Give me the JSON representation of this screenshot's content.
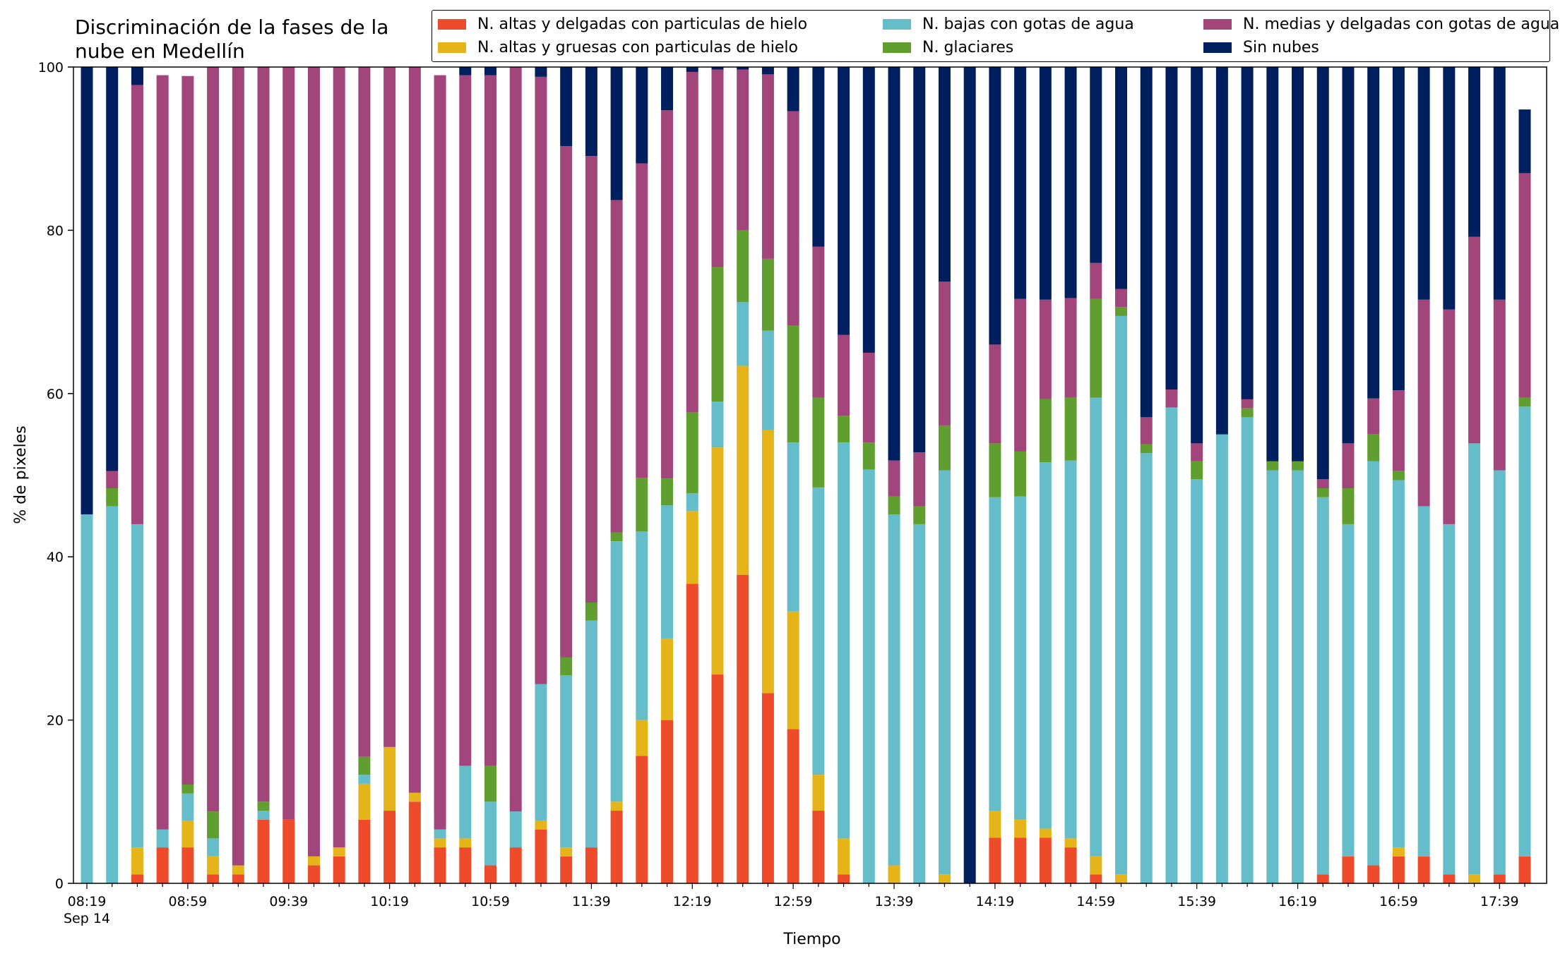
{
  "chart_data": {
    "type": "bar",
    "stacked": true,
    "title": "Discriminación de la fases de la\nnube en Medellín",
    "xlabel": "Tiempo",
    "ylabel": "% de pixeles",
    "ylim": [
      0,
      100
    ],
    "yticks": [
      0,
      20,
      40,
      60,
      80,
      100
    ],
    "xtick_labels": [
      "08:19",
      "08:59",
      "09:39",
      "10:19",
      "10:59",
      "11:39",
      "12:19",
      "12:59",
      "13:39",
      "14:19",
      "14:59",
      "15:39",
      "16:19",
      "16:59",
      "17:39"
    ],
    "xtick_first_sublabel": "Sep 14",
    "xtick_every": 4,
    "legend_position": "top",
    "categories": [
      "08:19",
      "08:29",
      "08:39",
      "08:49",
      "08:59",
      "09:09",
      "09:19",
      "09:29",
      "09:39",
      "09:49",
      "09:59",
      "10:09",
      "10:19",
      "10:29",
      "10:39",
      "10:49",
      "10:59",
      "11:09",
      "11:19",
      "11:29",
      "11:39",
      "11:49",
      "11:59",
      "12:09",
      "12:19",
      "12:29",
      "12:39",
      "12:49",
      "12:59",
      "13:09",
      "13:19",
      "13:29",
      "13:39",
      "13:49",
      "13:59",
      "14:09",
      "14:19",
      "14:29",
      "14:39",
      "14:49",
      "14:59",
      "15:09",
      "15:19",
      "15:29",
      "15:39",
      "15:49",
      "15:59",
      "16:09",
      "16:19",
      "16:29",
      "16:39",
      "16:49",
      "16:59",
      "17:09",
      "17:19",
      "17:29",
      "17:39",
      "17:49"
    ],
    "series": [
      {
        "name": "N. altas y delgadas con particulas de hielo",
        "color": "#EE4B2B",
        "values": [
          0,
          0,
          1.1,
          4.4,
          4.4,
          1.1,
          1.1,
          7.8,
          7.8,
          2.2,
          3.3,
          7.8,
          8.9,
          10,
          4.4,
          4.4,
          2.2,
          4.4,
          6.6,
          3.3,
          4.4,
          8.9,
          15.6,
          20,
          36.7,
          25.6,
          37.8,
          23.3,
          18.9,
          8.9,
          1.1,
          0,
          0,
          0,
          0,
          0,
          5.6,
          5.6,
          5.6,
          4.4,
          1.1,
          0,
          0,
          0,
          0,
          0,
          0,
          0,
          0,
          1.1,
          3.3,
          2.2,
          3.3,
          3.3,
          1.1,
          0,
          1.1,
          3.3
        ]
      },
      {
        "name": "N. altas y gruesas con particulas de hielo",
        "color": "#E5B418",
        "values": [
          0,
          0,
          3.3,
          0,
          3.3,
          2.2,
          1.1,
          0,
          0,
          1.1,
          1.1,
          4.4,
          7.8,
          1.1,
          1.1,
          1.1,
          0,
          0,
          1.1,
          1.1,
          0,
          1.1,
          4.4,
          10,
          8.9,
          27.8,
          25.6,
          32.2,
          14.4,
          4.4,
          4.4,
          0,
          2.2,
          0,
          1.1,
          0,
          3.3,
          2.2,
          1.1,
          1.1,
          2.2,
          1.1,
          0,
          0,
          0,
          0,
          0,
          0,
          0,
          0,
          0,
          0,
          1.1,
          0,
          0,
          1.1,
          0,
          0
        ]
      },
      {
        "name": "N. bajas con gotas de agua",
        "color": "#64BDC9",
        "values": [
          45.2,
          46.2,
          39.6,
          2.2,
          3.3,
          2.2,
          0,
          1.1,
          0,
          0,
          0,
          1.1,
          0,
          0,
          1.1,
          8.9,
          7.8,
          4.4,
          16.7,
          21.1,
          27.8,
          31.9,
          23.1,
          16.3,
          2.2,
          5.6,
          7.8,
          12.2,
          20.7,
          35.2,
          48.5,
          50.7,
          43,
          44,
          49.5,
          0,
          38.4,
          39.6,
          44.9,
          46.3,
          56.2,
          68.4,
          52.7,
          58.3,
          49.5,
          55,
          57.1,
          50.6,
          50.6,
          46.2,
          40.7,
          49.5,
          45,
          42.9,
          42.9,
          52.8,
          49.5,
          55.1
        ]
      },
      {
        "name": "N. glaciares",
        "color": "#5F9E2F",
        "values": [
          0,
          2.2,
          0,
          0,
          1.1,
          3.3,
          0,
          1.1,
          0,
          0,
          0,
          2.2,
          0,
          0,
          0,
          0,
          4.4,
          0,
          0,
          2.2,
          2.2,
          1.1,
          6.6,
          3.3,
          9.9,
          16.5,
          8.8,
          8.8,
          14.3,
          11,
          3.3,
          3.3,
          2.2,
          2.2,
          5.5,
          0,
          6.6,
          5.5,
          7.7,
          7.7,
          12.1,
          1.1,
          1.1,
          0,
          2.2,
          0,
          1.1,
          1.1,
          1.1,
          1.1,
          4.4,
          3.3,
          1.1,
          0,
          0,
          0,
          0,
          1.1
        ]
      },
      {
        "name": "N. medias y delgadas con gotas de agua",
        "color": "#A2457A",
        "values": [
          0,
          2.1,
          53.8,
          92.4,
          86.8,
          92.2,
          97.8,
          90,
          92.2,
          96.7,
          95.6,
          84.5,
          83.3,
          89,
          92.4,
          84.6,
          84.6,
          91.2,
          74.4,
          62.6,
          54.7,
          40.7,
          38.5,
          45.1,
          41.7,
          24.2,
          19.7,
          22.6,
          26.3,
          18.5,
          9.9,
          11,
          4.4,
          6.6,
          17.6,
          0,
          12.1,
          18.7,
          12.2,
          12.2,
          4.4,
          2.2,
          3.3,
          2.2,
          2.2,
          0,
          1.1,
          0,
          0,
          1.1,
          5.5,
          4.4,
          9.9,
          25.3,
          26.3,
          25.3,
          20.9,
          27.5
        ]
      },
      {
        "name": "Sin nubes",
        "color": "#001F5F",
        "values": [
          54.8,
          49.5,
          2.2,
          0,
          0,
          0,
          0,
          0,
          0,
          0,
          0,
          0,
          0,
          0,
          0,
          1,
          1,
          0,
          1.2,
          9.7,
          11,
          16.3,
          11.8,
          5.3,
          1.1,
          1.1,
          1.1,
          1.1,
          5.5,
          22,
          32.8,
          35,
          48.2,
          47.2,
          26.3,
          100,
          38.4,
          28.4,
          28.5,
          28.3,
          24,
          28.6,
          42.9,
          39.5,
          46.1,
          45,
          40.7,
          48.3,
          48.3,
          51.6,
          49.5,
          42.9,
          44,
          31.9,
          30.8,
          21.9,
          28.6,
          7.8
        ]
      }
    ]
  }
}
